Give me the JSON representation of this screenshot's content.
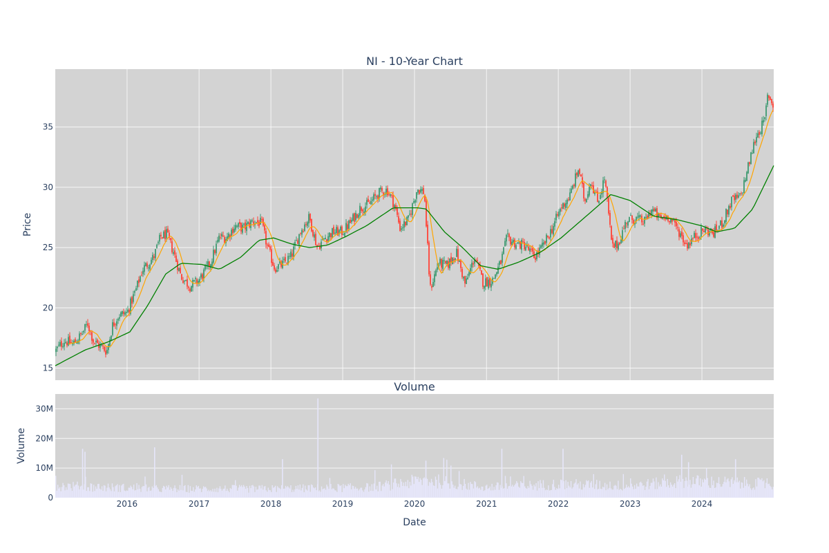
{
  "chart_data": [
    {
      "type": "candlestick",
      "title": "NI - 10-Year Chart",
      "xlabel": "",
      "ylabel": "Price",
      "ylim": [
        14.0,
        39.8
      ],
      "yticks": [
        15,
        20,
        25,
        30,
        35
      ],
      "x_range": [
        "2015-01-01",
        "2024-12-31"
      ],
      "grid": true,
      "colors": {
        "up": "#3d9970",
        "down": "#ff4136",
        "sma_short": "#ffa500",
        "sma_long": "#008000",
        "background": "#d3d3d3"
      },
      "price_path": [
        [
          "2015-01-01",
          16.4
        ],
        [
          "2015-02-15",
          17.3
        ],
        [
          "2015-04-01",
          17.0
        ],
        [
          "2015-05-15",
          17.8
        ],
        [
          "2015-06-15",
          18.7
        ],
        [
          "2015-07-15",
          17.2
        ],
        [
          "2015-08-20",
          16.8
        ],
        [
          "2015-09-20",
          16.4
        ],
        [
          "2015-10-20",
          18.6
        ],
        [
          "2015-11-20",
          19.4
        ],
        [
          "2016-01-01",
          19.6
        ],
        [
          "2016-02-15",
          21.5
        ],
        [
          "2016-03-20",
          23.2
        ],
        [
          "2016-05-15",
          24.2
        ],
        [
          "2016-06-20",
          25.9
        ],
        [
          "2016-07-20",
          26.1
        ],
        [
          "2016-08-25",
          24.6
        ],
        [
          "2016-10-01",
          22.6
        ],
        [
          "2016-11-15",
          21.8
        ],
        [
          "2017-01-01",
          22.3
        ],
        [
          "2017-03-01",
          23.8
        ],
        [
          "2017-04-15",
          25.9
        ],
        [
          "2017-05-20",
          25.8
        ],
        [
          "2017-07-01",
          26.8
        ],
        [
          "2017-08-15",
          26.6
        ],
        [
          "2017-10-01",
          27.2
        ],
        [
          "2017-11-15",
          27.0
        ],
        [
          "2017-12-15",
          25.0
        ],
        [
          "2018-01-20",
          23.3
        ],
        [
          "2018-03-01",
          23.6
        ],
        [
          "2018-04-15",
          24.3
        ],
        [
          "2018-06-01",
          26.4
        ],
        [
          "2018-07-15",
          27.5
        ],
        [
          "2018-08-25",
          25.0
        ],
        [
          "2018-10-01",
          25.8
        ],
        [
          "2018-11-15",
          26.3
        ],
        [
          "2019-01-01",
          26.3
        ],
        [
          "2019-02-15",
          27.2
        ],
        [
          "2019-04-01",
          28.3
        ],
        [
          "2019-05-15",
          28.6
        ],
        [
          "2019-07-01",
          29.5
        ],
        [
          "2019-08-15",
          29.8
        ],
        [
          "2019-09-20",
          28.6
        ],
        [
          "2019-10-20",
          26.6
        ],
        [
          "2019-12-01",
          27.3
        ],
        [
          "2020-01-15",
          29.9
        ],
        [
          "2020-02-20",
          29.6
        ],
        [
          "2020-03-20",
          21.5
        ],
        [
          "2020-05-01",
          23.7
        ],
        [
          "2020-06-15",
          23.5
        ],
        [
          "2020-08-01",
          24.6
        ],
        [
          "2020-09-15",
          21.9
        ],
        [
          "2020-11-01",
          24.2
        ],
        [
          "2020-12-15",
          22.1
        ],
        [
          "2021-02-01",
          22.3
        ],
        [
          "2021-03-15",
          23.8
        ],
        [
          "2021-04-15",
          25.8
        ],
        [
          "2021-06-01",
          25.3
        ],
        [
          "2021-07-15",
          25.2
        ],
        [
          "2021-09-01",
          24.2
        ],
        [
          "2021-10-15",
          25.1
        ],
        [
          "2021-12-01",
          26.6
        ],
        [
          "2022-01-15",
          28.3
        ],
        [
          "2022-03-01",
          29.3
        ],
        [
          "2022-04-15",
          31.6
        ],
        [
          "2022-05-15",
          28.8
        ],
        [
          "2022-06-15",
          30.6
        ],
        [
          "2022-07-20",
          28.8
        ],
        [
          "2022-08-25",
          30.8
        ],
        [
          "2022-10-01",
          25.0
        ],
        [
          "2022-11-01",
          25.3
        ],
        [
          "2022-12-15",
          27.3
        ],
        [
          "2023-02-01",
          27.4
        ],
        [
          "2023-03-15",
          27.1
        ],
        [
          "2023-04-20",
          28.2
        ],
        [
          "2023-06-01",
          27.4
        ],
        [
          "2023-07-15",
          27.6
        ],
        [
          "2023-09-01",
          26.5
        ],
        [
          "2023-10-15",
          25.2
        ],
        [
          "2023-12-01",
          26.0
        ],
        [
          "2024-01-15",
          26.5
        ],
        [
          "2024-03-01",
          26.2
        ],
        [
          "2024-04-15",
          27.1
        ],
        [
          "2024-06-01",
          28.9
        ],
        [
          "2024-07-15",
          29.2
        ],
        [
          "2024-08-20",
          31.5
        ],
        [
          "2024-10-01",
          34.2
        ],
        [
          "2024-11-15",
          35.5
        ],
        [
          "2024-12-01",
          37.8
        ],
        [
          "2024-12-31",
          36.7
        ]
      ],
      "sma_long_path": [
        [
          "2015-01-01",
          15.2
        ],
        [
          "2015-06-01",
          16.5
        ],
        [
          "2015-10-01",
          17.2
        ],
        [
          "2016-01-15",
          18.0
        ],
        [
          "2016-04-15",
          20.2
        ],
        [
          "2016-07-15",
          22.8
        ],
        [
          "2016-10-01",
          23.7
        ],
        [
          "2017-01-15",
          23.6
        ],
        [
          "2017-04-15",
          23.2
        ],
        [
          "2017-08-01",
          24.2
        ],
        [
          "2017-11-01",
          25.6
        ],
        [
          "2018-01-15",
          25.8
        ],
        [
          "2018-04-15",
          25.3
        ],
        [
          "2018-07-15",
          25.0
        ],
        [
          "2018-10-15",
          25.2
        ],
        [
          "2019-01-15",
          25.9
        ],
        [
          "2019-05-01",
          26.8
        ],
        [
          "2019-09-15",
          28.3
        ],
        [
          "2020-01-15",
          28.3
        ],
        [
          "2020-03-01",
          28.2
        ],
        [
          "2020-06-01",
          26.3
        ],
        [
          "2020-09-01",
          25.0
        ],
        [
          "2020-12-01",
          23.5
        ],
        [
          "2021-03-01",
          23.2
        ],
        [
          "2021-06-15",
          23.8
        ],
        [
          "2021-10-01",
          24.6
        ],
        [
          "2022-01-15",
          25.8
        ],
        [
          "2022-05-01",
          27.3
        ],
        [
          "2022-08-15",
          28.8
        ],
        [
          "2022-09-25",
          29.4
        ],
        [
          "2023-01-01",
          28.9
        ],
        [
          "2023-05-01",
          27.6
        ],
        [
          "2023-09-01",
          27.3
        ],
        [
          "2024-01-01",
          26.8
        ],
        [
          "2024-03-15",
          26.3
        ],
        [
          "2024-06-15",
          26.6
        ],
        [
          "2024-09-15",
          28.2
        ],
        [
          "2024-12-31",
          31.8
        ]
      ]
    },
    {
      "type": "bar",
      "title": "Volume",
      "xlabel": "Date",
      "ylabel": "Volume",
      "ylim": [
        0,
        35
      ],
      "yticks": [
        0,
        10,
        20,
        30
      ],
      "ytick_labels": [
        "0",
        "10M",
        "20M",
        "30M"
      ],
      "y_unit": "M",
      "x_ticks": [
        "2016",
        "2017",
        "2018",
        "2019",
        "2020",
        "2021",
        "2022",
        "2023",
        "2024"
      ],
      "colors": {
        "bars": "#e6e6fa"
      },
      "baseline_level": [
        [
          "2015-01-01",
          4.0
        ],
        [
          "2016-06-01",
          3.0
        ],
        [
          "2018-01-01",
          3.0
        ],
        [
          "2019-06-01",
          3.5
        ],
        [
          "2020-03-01",
          6.0
        ],
        [
          "2021-01-01",
          3.5
        ],
        [
          "2022-01-01",
          4.5
        ],
        [
          "2023-01-01",
          4.0
        ],
        [
          "2023-10-01",
          5.5
        ],
        [
          "2024-12-31",
          4.5
        ]
      ],
      "spikes": [
        [
          "2015-05-20",
          16.5
        ],
        [
          "2015-06-01",
          15.5
        ],
        [
          "2016-05-20",
          17.0
        ],
        [
          "2018-03-01",
          13.0
        ],
        [
          "2018-08-28",
          33.5
        ],
        [
          "2020-02-28",
          12.5
        ],
        [
          "2021-03-20",
          16.5
        ],
        [
          "2022-01-25",
          16.5
        ],
        [
          "2023-09-20",
          14.5
        ],
        [
          "2023-10-25",
          12.0
        ],
        [
          "2024-06-20",
          13.0
        ]
      ]
    }
  ]
}
